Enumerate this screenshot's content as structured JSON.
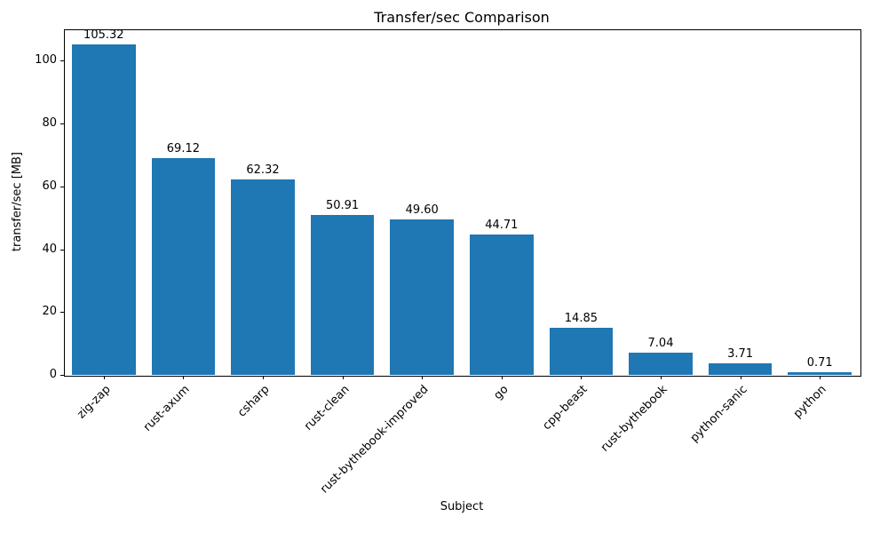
{
  "chart_data": {
    "type": "bar",
    "title": "Transfer/sec Comparison",
    "xlabel": "Subject",
    "ylabel": "transfer/sec [MB]",
    "categories": [
      "zig-zap",
      "rust-axum",
      "csharp",
      "rust-clean",
      "rust-bythebook-improved",
      "go",
      "cpp-beast",
      "rust-bythebook",
      "python-sanic",
      "python"
    ],
    "values": [
      105.32,
      69.12,
      62.32,
      50.91,
      49.6,
      44.71,
      14.85,
      7.04,
      3.71,
      0.71
    ],
    "value_labels": [
      "105.32",
      "69.12",
      "62.32",
      "50.91",
      "49.60",
      "44.71",
      "14.85",
      "7.04",
      "3.71",
      "0.71"
    ],
    "ylim": [
      0,
      110
    ],
    "yticks": [
      0,
      20,
      40,
      60,
      80,
      100
    ],
    "bar_color": "#1f77b4",
    "grid": false,
    "legend_position": "none"
  }
}
